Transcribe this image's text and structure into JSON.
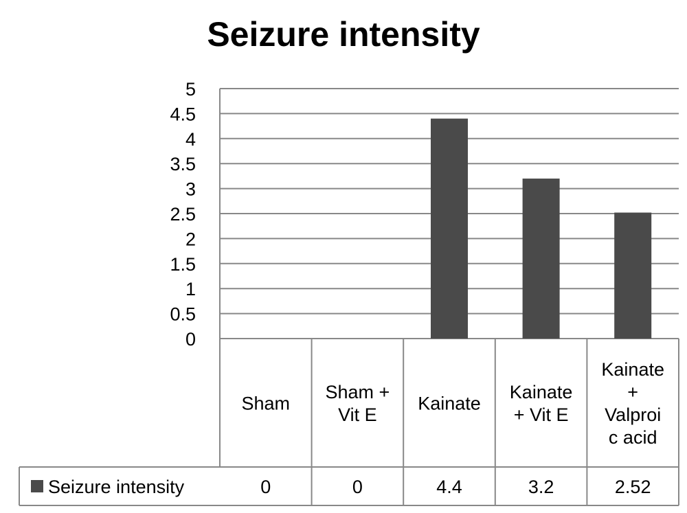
{
  "chart_data": {
    "type": "bar",
    "title": "Seizure intensity",
    "xlabel": "",
    "ylabel": "",
    "ylim": [
      0,
      5
    ],
    "yticks": [
      "0",
      "0.5",
      "1",
      "1.5",
      "2",
      "2.5",
      "3",
      "3.5",
      "4",
      "4.5",
      "5"
    ],
    "grid": true,
    "legend": "data table",
    "categories": [
      [
        "Sham"
      ],
      [
        "Sham +",
        "Vit E"
      ],
      [
        "Kainate"
      ],
      [
        "Kainate",
        "+ Vit E"
      ],
      [
        "Kainate",
        "+",
        "Valproi",
        "c acid"
      ]
    ],
    "series": [
      {
        "name": "Seizure intensity",
        "values": [
          0,
          0,
          4.4,
          3.2,
          2.52
        ],
        "labels": [
          "0",
          "0",
          "4.4",
          "3.2",
          "2.52"
        ],
        "color": "#4a4a4a"
      }
    ]
  },
  "colors": {
    "grid": "#888888",
    "axis": "#888888",
    "bar": "#4a4a4a"
  }
}
